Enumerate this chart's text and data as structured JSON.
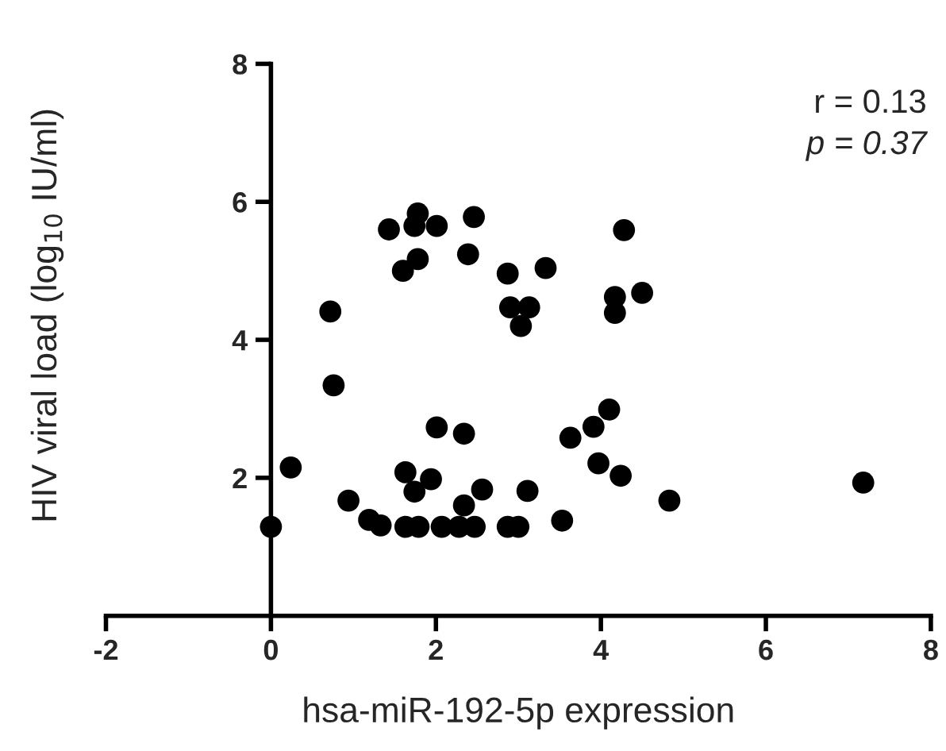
{
  "chart_data": {
    "type": "scatter",
    "xlabel": "hsa-miR-192-5p expression",
    "ylabel": "HIV viral load (log$_{10}$ IU/ml)",
    "annotations": [
      "r = 0.13",
      "p = 0.37"
    ],
    "xlim": [
      -2,
      8
    ],
    "xticks": [
      -2,
      0,
      2,
      4,
      6,
      8
    ],
    "ylim": [
      0,
      8
    ],
    "yticks": [
      2,
      4,
      6,
      8
    ],
    "grid": false,
    "legend": false,
    "marker": "circle",
    "series": [
      {
        "color": "#000000",
        "x": [
          1.43,
          1.78,
          1.74,
          2.01,
          2.46,
          1.6,
          1.78,
          2.39,
          2.87,
          3.33,
          2.9,
          3.13,
          3.03,
          0.72,
          0.76,
          2.01,
          2.34,
          3.63,
          3.91,
          0.24,
          0.0,
          0.94,
          1.19,
          1.33,
          1.63,
          1.94,
          1.74,
          1.63,
          1.79,
          2.07,
          2.34,
          2.28,
          2.47,
          2.56,
          2.87,
          3.0,
          3.11,
          3.53,
          3.97,
          4.28,
          4.17,
          4.17,
          4.5,
          4.1,
          4.24,
          4.83,
          7.18
        ],
        "values": [
          5.6,
          5.83,
          5.65,
          5.65,
          5.78,
          5.0,
          5.17,
          5.24,
          4.96,
          5.04,
          4.47,
          4.47,
          4.2,
          4.41,
          3.34,
          2.73,
          2.64,
          2.58,
          2.74,
          2.15,
          1.29,
          1.67,
          1.39,
          1.31,
          2.08,
          1.98,
          1.8,
          1.29,
          1.29,
          1.29,
          1.6,
          1.29,
          1.29,
          1.83,
          1.29,
          1.29,
          1.81,
          1.38,
          2.21,
          5.59,
          4.62,
          4.39,
          4.68,
          2.99,
          2.03,
          1.67,
          1.93
        ]
      }
    ]
  }
}
